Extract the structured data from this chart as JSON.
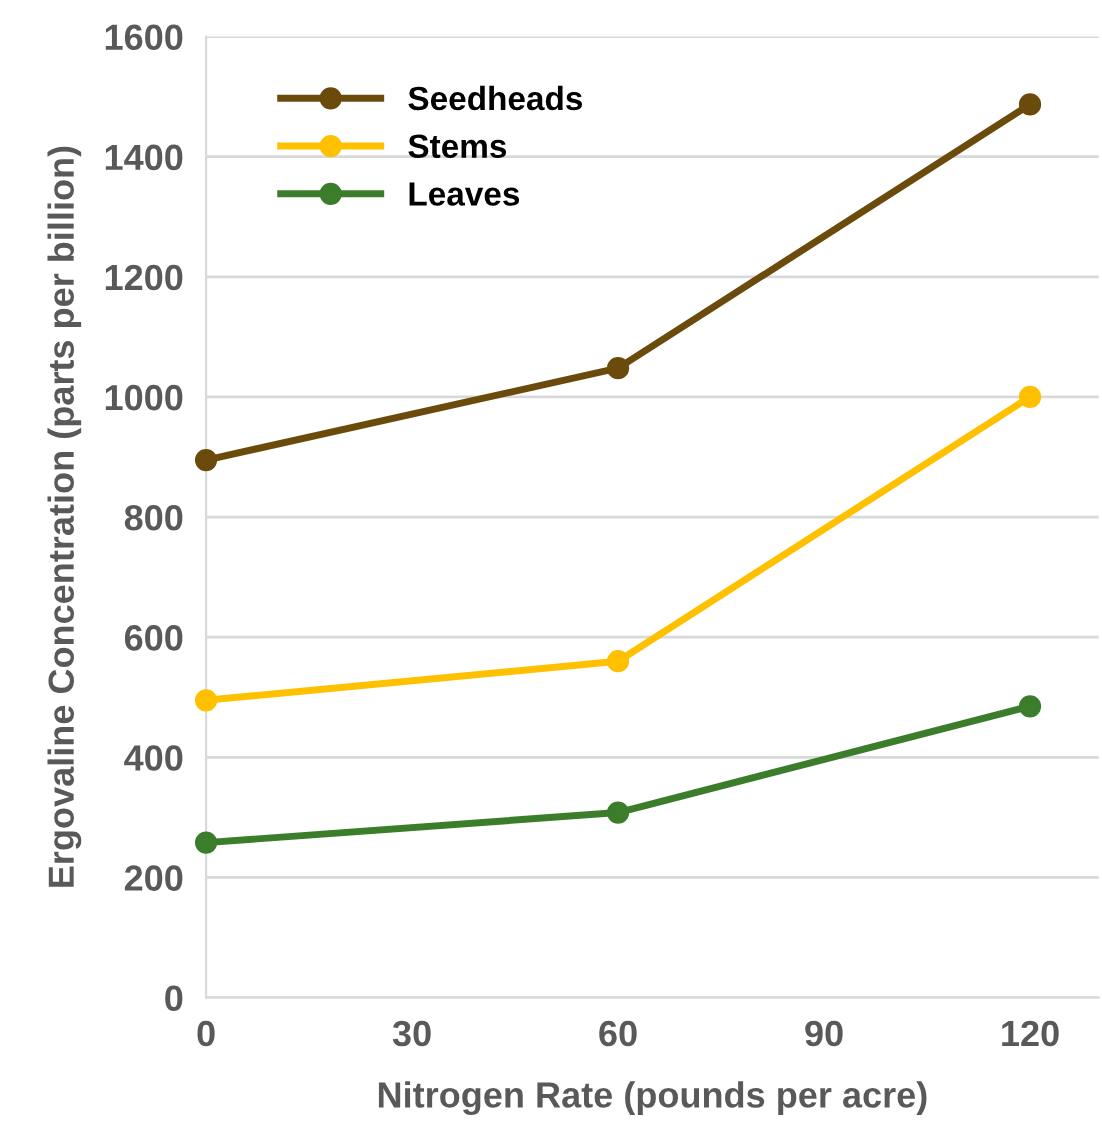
{
  "chart_data": {
    "type": "line",
    "xlabel": "Nitrogen Rate (pounds per acre)",
    "ylabel": "Ergovaline Concentration (parts per billion)",
    "x": [
      0,
      60,
      120
    ],
    "series": [
      {
        "name": "Seedheads",
        "color": "#6b4b0c",
        "values": [
          895,
          1048,
          1487
        ]
      },
      {
        "name": "Stems",
        "color": "#ffc000",
        "values": [
          495,
          560,
          1000
        ]
      },
      {
        "name": "Leaves",
        "color": "#3b7d2a",
        "values": [
          258,
          308,
          485
        ]
      }
    ],
    "xlim": [
      0,
      130
    ],
    "xticks": [
      0,
      30,
      60,
      90,
      120
    ],
    "ylim": [
      0,
      1600
    ],
    "yticks": [
      0,
      200,
      400,
      600,
      800,
      1000,
      1200,
      1400,
      1600
    ],
    "grid": "y",
    "legend": "top left",
    "marker": "circle",
    "line_style": "solid"
  }
}
